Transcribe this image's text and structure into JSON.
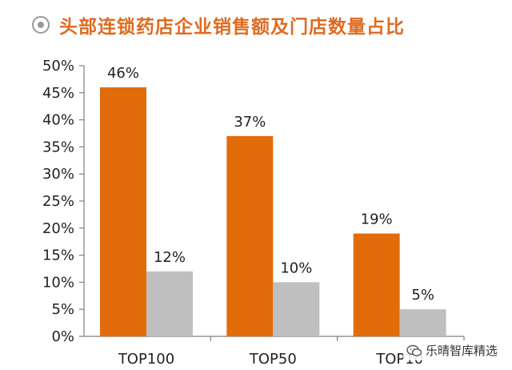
{
  "title": "头部连锁药店企业销售额及门店数量占比",
  "watermark": "乐晴智库精选",
  "colors": {
    "sales": "#e36c0a",
    "stores": "#bfbfbf",
    "title": "#e06b1f",
    "axis": "#7f7f7f"
  },
  "chart_data": {
    "type": "bar",
    "title": "头部连锁药店企业销售额及门店数量占比",
    "categories": [
      "TOP100",
      "TOP50",
      "TOP10"
    ],
    "series": [
      {
        "values": [
          46,
          37,
          19
        ],
        "labels": [
          "46%",
          "37%",
          "19%"
        ]
      },
      {
        "values": [
          12,
          10,
          5
        ],
        "labels": [
          "12%",
          "10%",
          "5%"
        ]
      }
    ],
    "ylim": [
      0,
      50
    ],
    "yticks": [
      "0%",
      "5%",
      "10%",
      "15%",
      "20%",
      "25%",
      "30%",
      "35%",
      "40%",
      "45%",
      "50%"
    ],
    "grid": false,
    "legend": "none"
  }
}
